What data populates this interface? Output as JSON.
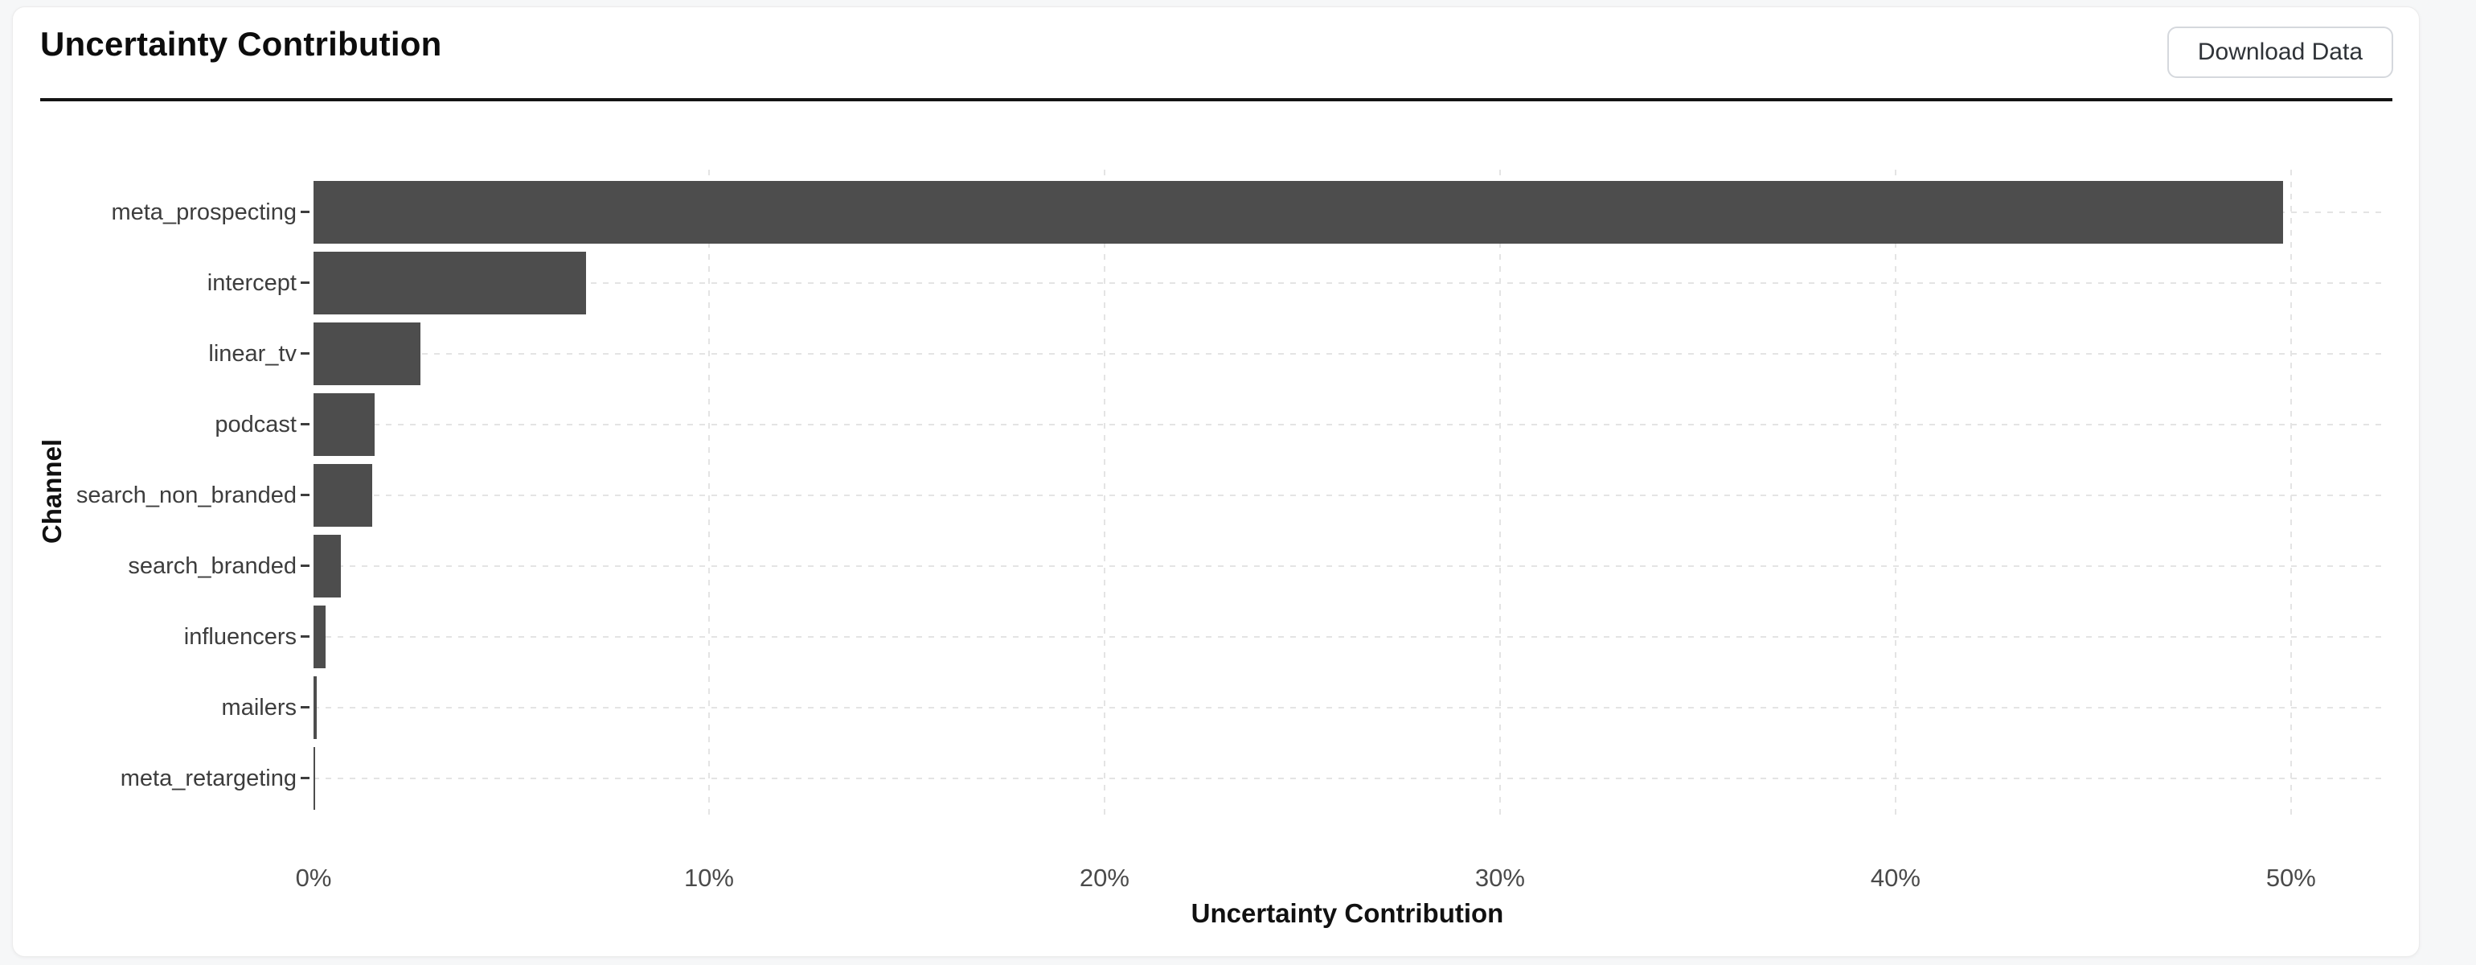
{
  "header": {
    "title": "Uncertainty Contribution",
    "download_button_label": "Download Data"
  },
  "chart_data": {
    "type": "bar",
    "orientation": "horizontal",
    "title": "Uncertainty Contribution",
    "categories": [
      "meta_prospecting",
      "intercept",
      "linear_tv",
      "podcast",
      "search_non_branded",
      "search_branded",
      "influencers",
      "mailers",
      "meta_retargeting"
    ],
    "values": [
      49.8,
      6.9,
      2.7,
      1.55,
      1.48,
      0.7,
      0.3,
      0.08,
      0.04
    ],
    "xlabel": "Uncertainty Contribution",
    "ylabel": "Channel",
    "x_ticks": [
      {
        "value": 0,
        "label": "0%"
      },
      {
        "value": 10,
        "label": "10%"
      },
      {
        "value": 20,
        "label": "20%"
      },
      {
        "value": 30,
        "label": "30%"
      },
      {
        "value": 40,
        "label": "40%"
      },
      {
        "value": 50,
        "label": "50%"
      }
    ],
    "xlim": [
      0,
      52.3
    ],
    "value_unit": "%",
    "bar_color": "#4d4d4d",
    "grid_color": "#e4e4e4",
    "grid_style": "dashed",
    "legend_position": "none"
  }
}
